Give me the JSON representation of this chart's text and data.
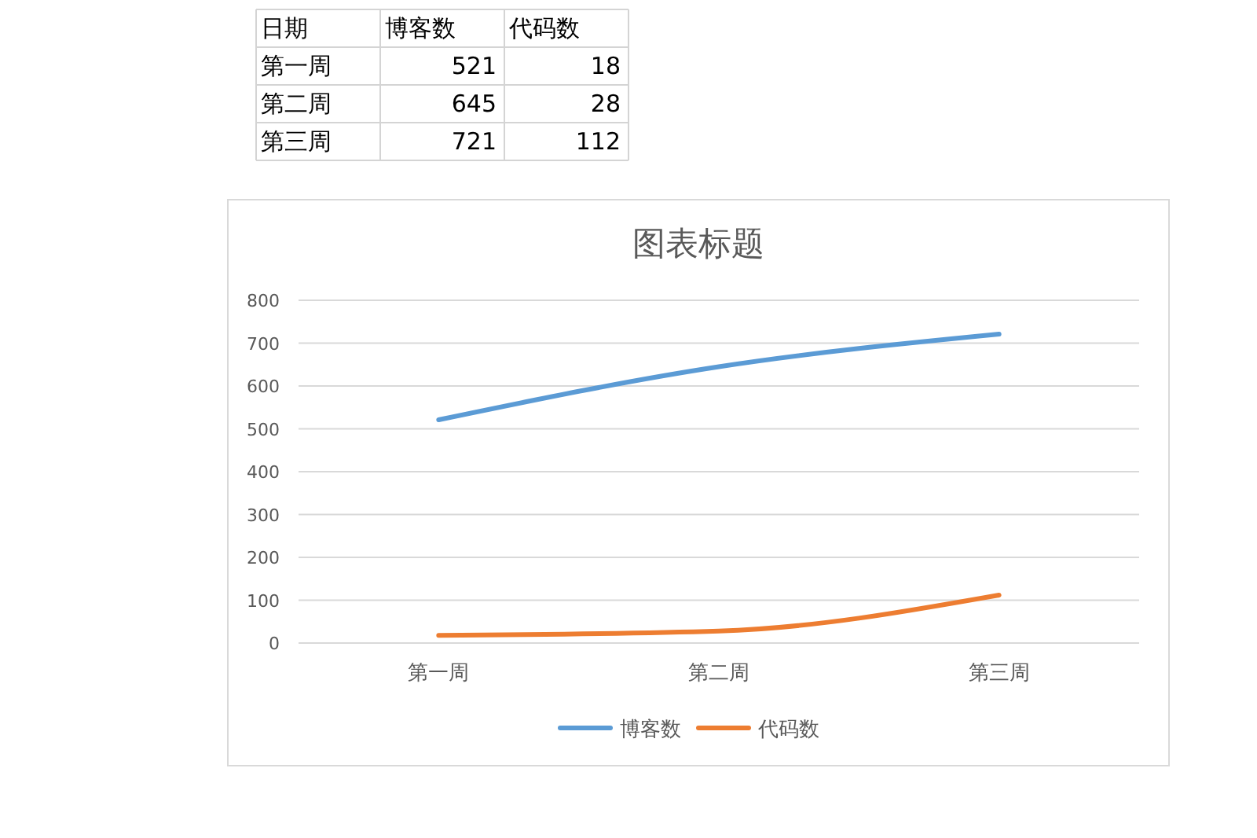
{
  "chart_data": [
    {
      "type": "heatmap",
      "annotations": [
        "日期"
      ],
      "categories": [
        "博客数",
        "代码数"
      ],
      "y_categories": [
        "第一周",
        "第二周",
        "第三周"
      ],
      "cells": [
        [
          521,
          18
        ],
        [
          645,
          28
        ],
        [
          721,
          112
        ]
      ],
      "data_labels": true
    },
    {
      "type": "line",
      "title": "图表标题",
      "categories": [
        "第一周",
        "第二周",
        "第三周"
      ],
      "series": [
        {
          "name": "博客数",
          "color": "#5b9bd5",
          "values": [
            521,
            645,
            721
          ]
        },
        {
          "name": "代码数",
          "color": "#ed7d31",
          "values": [
            18,
            28,
            112
          ]
        }
      ],
      "ylim": [
        0,
        800
      ],
      "yticks": [
        0,
        100,
        200,
        300,
        400,
        500,
        600,
        700,
        800
      ],
      "grid": "y",
      "legend": "bottom",
      "marker": "none",
      "line_style": "solid"
    }
  ]
}
